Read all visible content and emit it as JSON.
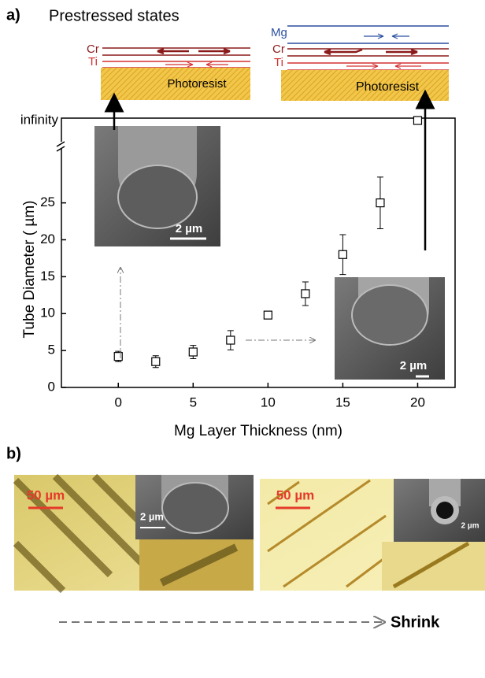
{
  "chart_data": {
    "type": "scatter",
    "panel_a": "a)",
    "panel_b": "b)",
    "title": "Prestressed states",
    "x_label": "Mg Layer Thickness (nm)",
    "y_label": "Tube Diameter ( µm)",
    "x": [
      0,
      2.5,
      5,
      7.5,
      10,
      12.5,
      15,
      17.5,
      20
    ],
    "series": [
      {
        "color": "#000000",
        "values": [
          4.2,
          3.5,
          4.8,
          6.4,
          9.8,
          12.7,
          18,
          25,
          null
        ],
        "errors": [
          0.7,
          0.8,
          0.9,
          1.3,
          0.5,
          1.6,
          2.7,
          3.5,
          null
        ]
      }
    ],
    "xlim": [
      -3.8,
      22.5
    ],
    "ylim": [
      0,
      32
    ],
    "xticks": [
      0,
      5,
      10,
      15,
      20
    ],
    "yticks": [
      0,
      5,
      10,
      15,
      20,
      25
    ],
    "y_break_label": "infinity",
    "schematic_left": {
      "layers": [
        "Cr",
        "Ti"
      ],
      "substrate": "Photoresist"
    },
    "schematic_right": {
      "layers": [
        "Mg",
        "Cr",
        "Ti"
      ],
      "substrate": "Photoresist"
    },
    "scale_bars": [
      "2 µm",
      "2 µm",
      "50 µm",
      "50 µm",
      "2 µm",
      "2 µm"
    ],
    "arrow_label": "Shrink"
  }
}
